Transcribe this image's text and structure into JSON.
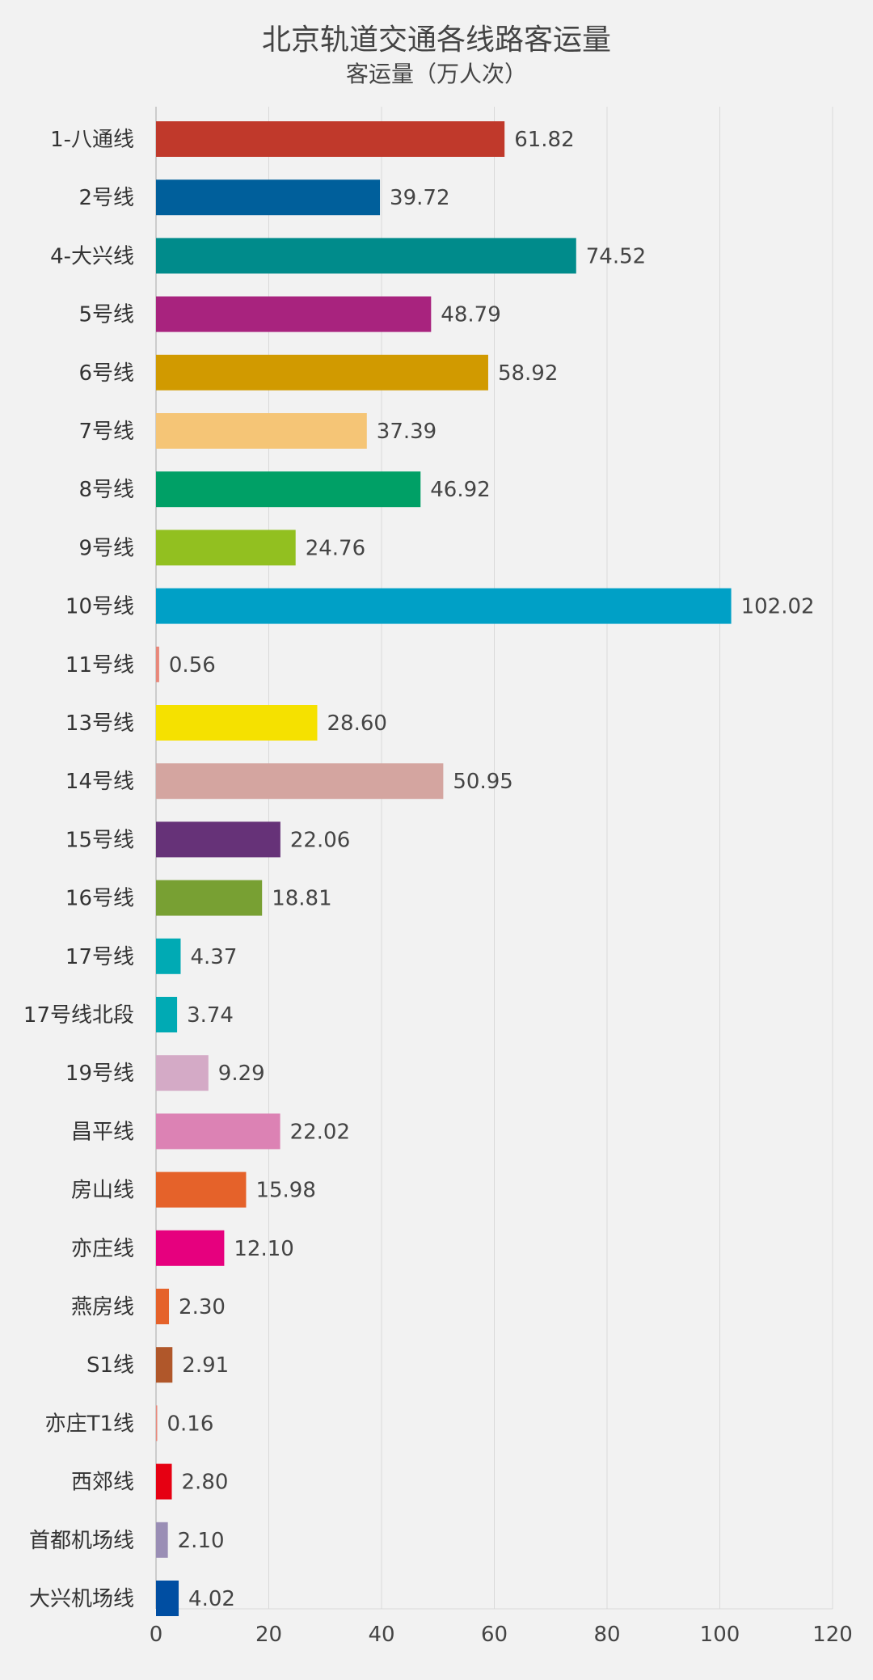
{
  "chart_data": {
    "type": "bar",
    "orientation": "horizontal",
    "title": "北京轨道交通各线路客运量",
    "subtitle": "客运量（万人次）",
    "categories": [
      "1-八通线",
      "2号线",
      "4-大兴线",
      "5号线",
      "6号线",
      "7号线",
      "8号线",
      "9号线",
      "10号线",
      "11号线",
      "13号线",
      "14号线",
      "15号线",
      "16号线",
      "17号线",
      "17号线北段",
      "19号线",
      "昌平线",
      "房山线",
      "亦庄线",
      "燕房线",
      "S1线",
      "亦庄T1线",
      "西郊线",
      "首都机场线",
      "大兴机场线"
    ],
    "values": [
      61.82,
      39.72,
      74.52,
      48.79,
      58.92,
      37.39,
      46.92,
      24.76,
      102.02,
      0.56,
      28.6,
      50.95,
      22.06,
      18.81,
      4.37,
      3.74,
      9.29,
      22.02,
      15.98,
      12.1,
      2.3,
      2.91,
      0.16,
      2.8,
      2.1,
      4.02
    ],
    "value_labels": [
      "61.82",
      "39.72",
      "74.52",
      "48.79",
      "58.92",
      "37.39",
      "46.92",
      "24.76",
      "102.02",
      "0.56",
      "28.60",
      "50.95",
      "22.06",
      "18.81",
      "4.37",
      "3.74",
      "9.29",
      "22.02",
      "15.98",
      "12.10",
      "2.30",
      "2.91",
      "0.16",
      "2.80",
      "2.10",
      "4.02"
    ],
    "colors": [
      "#c0392b",
      "#005f9b",
      "#008b8b",
      "#a8237e",
      "#d19a00",
      "#f5c576",
      "#00a066",
      "#92c020",
      "#00a0c6",
      "#e8877a",
      "#f5e100",
      "#d4a5a0",
      "#663278",
      "#78a033",
      "#00aab4",
      "#00aab4",
      "#d4aac6",
      "#dc82b4",
      "#e5622a",
      "#e6007e",
      "#e5622a",
      "#b0572a",
      "#e8877a",
      "#e60012",
      "#9a8eb5",
      "#004ea2"
    ],
    "xlim": [
      0,
      120
    ],
    "xticks": [
      0,
      20,
      40,
      60,
      80,
      100,
      120
    ],
    "grid": true,
    "legend": "none"
  }
}
